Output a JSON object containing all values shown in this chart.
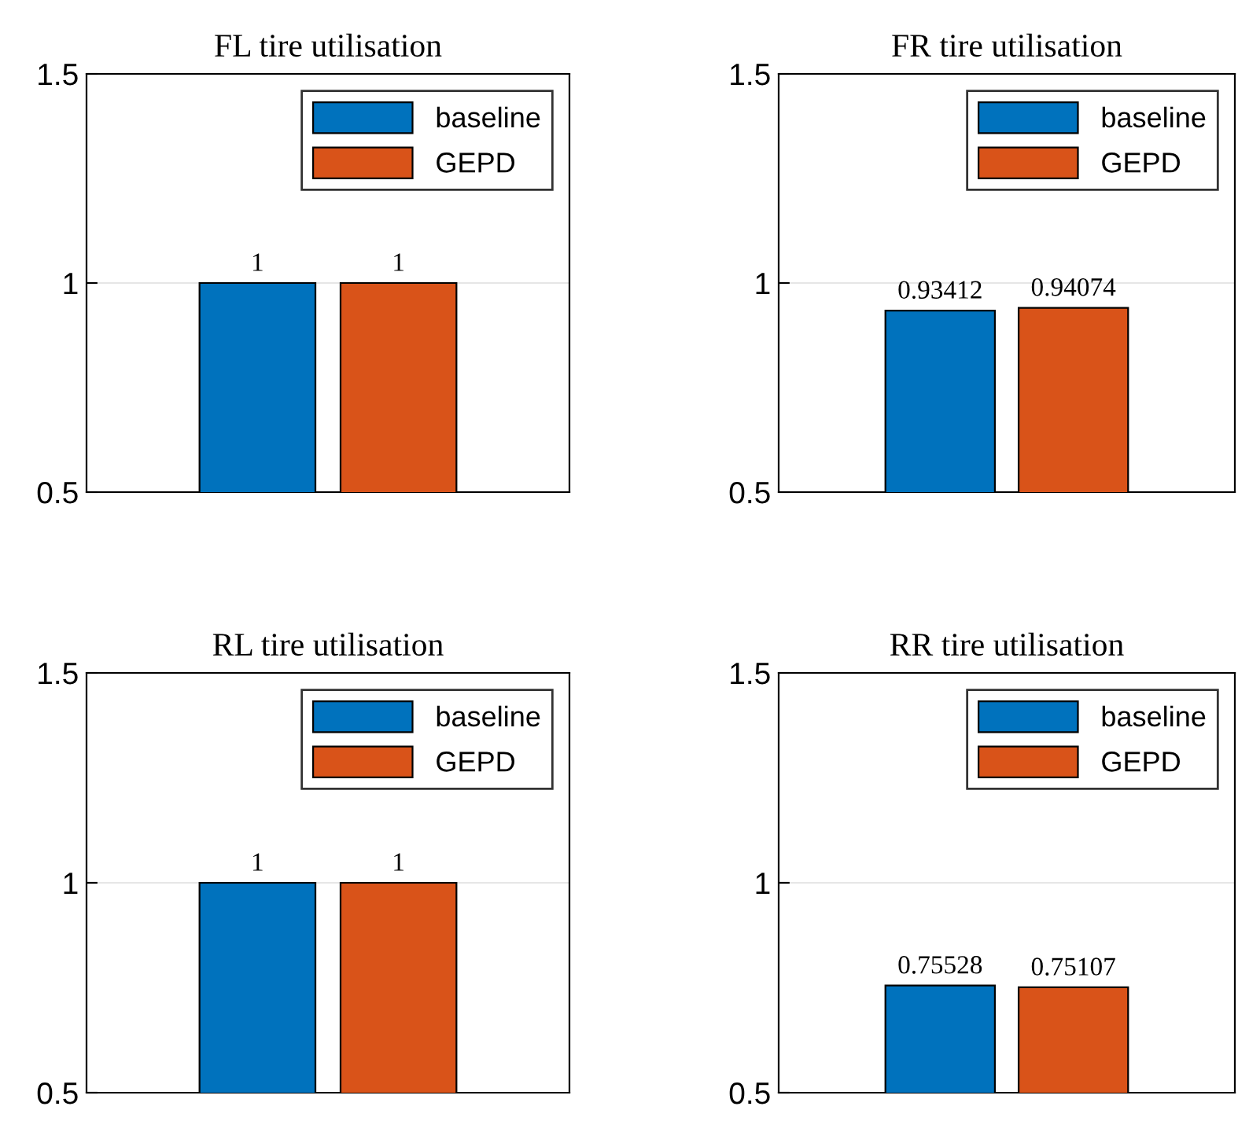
{
  "chart_data": [
    {
      "type": "bar",
      "title": "FL tire utilisation",
      "categories": [
        null
      ],
      "series": [
        {
          "name": "baseline",
          "color": "#0072bd",
          "values": [
            1
          ]
        },
        {
          "name": "GEPD",
          "color": "#d95319",
          "values": [
            1
          ]
        }
      ],
      "ylim": [
        0.5,
        1.5
      ],
      "yticks": [
        0.5,
        1,
        1.5
      ],
      "grid": "y",
      "legend": "top right",
      "data_labels": true
    },
    {
      "type": "bar",
      "title": "FR tire utilisation",
      "categories": [
        null
      ],
      "series": [
        {
          "name": "baseline",
          "color": "#0072bd",
          "values": [
            0.93412
          ]
        },
        {
          "name": "GEPD",
          "color": "#d95319",
          "values": [
            0.94074
          ]
        }
      ],
      "ylim": [
        0.5,
        1.5
      ],
      "yticks": [
        0.5,
        1,
        1.5
      ],
      "grid": "y",
      "legend": "top right",
      "data_labels": true
    },
    {
      "type": "bar",
      "title": "RL tire utilisation",
      "categories": [
        null
      ],
      "series": [
        {
          "name": "baseline",
          "color": "#0072bd",
          "values": [
            1
          ]
        },
        {
          "name": "GEPD",
          "color": "#d95319",
          "values": [
            1
          ]
        }
      ],
      "ylim": [
        0.5,
        1.5
      ],
      "yticks": [
        0.5,
        1,
        1.5
      ],
      "grid": "y",
      "legend": "top right",
      "data_labels": true
    },
    {
      "type": "bar",
      "title": "RR tire utilisation",
      "categories": [
        null
      ],
      "series": [
        {
          "name": "baseline",
          "color": "#0072bd",
          "values": [
            0.75528
          ]
        },
        {
          "name": "GEPD",
          "color": "#d95319",
          "values": [
            0.75107
          ]
        }
      ],
      "ylim": [
        0.5,
        1.5
      ],
      "yticks": [
        0.5,
        1,
        1.5
      ],
      "grid": "y",
      "legend": "top right",
      "data_labels": true
    }
  ]
}
